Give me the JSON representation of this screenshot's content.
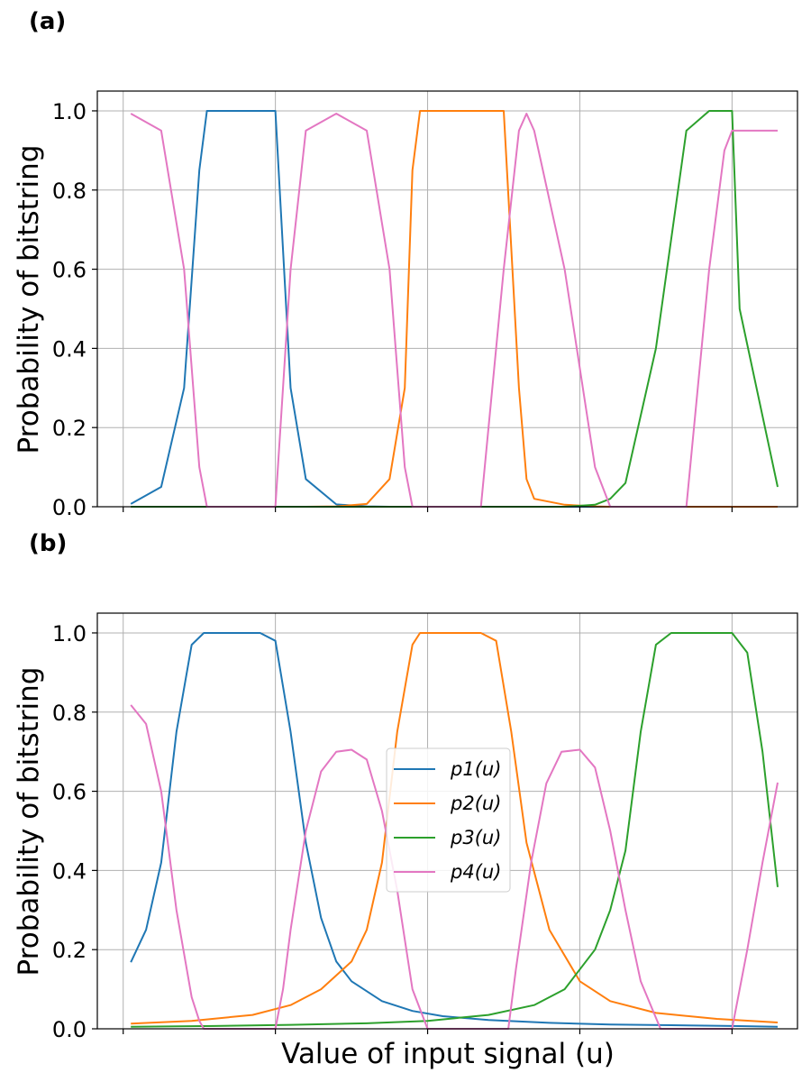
{
  "chart_data": [
    {
      "panel": "(a)",
      "type": "line",
      "title": "",
      "xlabel": "",
      "ylabel": "Probability of bitstring",
      "ylim": [
        0,
        1.05
      ],
      "xlim": [
        -0.5,
        4.1
      ],
      "xticks": [
        -0.33,
        0.67,
        1.67,
        2.67,
        3.67
      ],
      "xtick_labels": [
        "",
        "",
        "",
        "",
        ""
      ],
      "yticks": [
        0.0,
        0.2,
        0.4,
        0.6,
        0.8,
        1.0
      ],
      "ytick_labels": [
        "0.0",
        "0.2",
        "0.4",
        "0.6",
        "0.8",
        "1.0"
      ],
      "grid": true,
      "legend": null,
      "x_sample": [
        -0.28,
        -0.08,
        0.07,
        0.17,
        0.22,
        0.27,
        0.47,
        0.67,
        0.77,
        0.87,
        1.07,
        1.27,
        1.42,
        1.52,
        1.57,
        1.62,
        1.82,
        2.02,
        2.17,
        2.27,
        2.32,
        2.37,
        2.57,
        2.77,
        2.87,
        2.97,
        3.17,
        3.37,
        3.52,
        3.62,
        3.67,
        3.72,
        3.97
      ],
      "series": [
        {
          "name": "p1(u)",
          "color": "#1f77b4",
          "values": [
            0.007,
            0.05,
            0.3,
            0.85,
            1.0,
            1.0,
            1.0,
            1.0,
            0.3,
            0.07,
            0.006,
            0.001,
            0,
            0,
            0,
            0,
            0,
            0,
            0,
            0,
            0,
            0,
            0,
            0,
            0,
            0,
            0,
            0,
            0,
            0,
            0,
            0,
            0
          ]
        },
        {
          "name": "p2(u)",
          "color": "#ff7f0e",
          "values": [
            0,
            0,
            0,
            0,
            0,
            0,
            0,
            0,
            0,
            0,
            0.001,
            0.007,
            0.07,
            0.3,
            0.85,
            1.0,
            1.0,
            1.0,
            1.0,
            0.3,
            0.07,
            0.02,
            0.005,
            0.001,
            0,
            0,
            0,
            0,
            0,
            0,
            0,
            0,
            0
          ]
        },
        {
          "name": "p3(u)",
          "color": "#2ca02c",
          "values": [
            0,
            0,
            0,
            0,
            0,
            0,
            0,
            0,
            0,
            0,
            0,
            0,
            0,
            0,
            0,
            0,
            0,
            0,
            0,
            0,
            0,
            0,
            0,
            0.005,
            0.02,
            0.06,
            0.4,
            0.95,
            1.0,
            1.0,
            1.0,
            0.5,
            0.05
          ]
        },
        {
          "name": "p4(u)",
          "color": "#e377c2",
          "values": [
            0.993,
            0.95,
            0.6,
            0.1,
            0,
            0,
            0,
            0,
            0.6,
            0.95,
            0.993,
            0.95,
            0.6,
            0.1,
            0,
            0,
            0,
            0,
            0.6,
            0.95,
            0.993,
            0.95,
            0.6,
            0.1,
            0,
            0,
            0,
            0,
            0.6,
            0.9,
            0.95,
            0.95,
            0.95
          ]
        }
      ]
    },
    {
      "panel": "(b)",
      "type": "line",
      "title": "",
      "xlabel": "Value of input signal (u)",
      "ylabel": "Probability of bitstring",
      "ylim": [
        0,
        1.05
      ],
      "xlim": [
        -0.5,
        4.1
      ],
      "xticks": [
        -0.33,
        0.67,
        1.67,
        2.67,
        3.67
      ],
      "xtick_labels": [
        "",
        "",
        "",
        "",
        ""
      ],
      "yticks": [
        0.0,
        0.2,
        0.4,
        0.6,
        0.8,
        1.0
      ],
      "ytick_labels": [
        "0.0",
        "0.2",
        "0.4",
        "0.6",
        "0.8",
        "1.0"
      ],
      "grid": true,
      "legend": {
        "placement": "center",
        "entries": [
          "p1(u)",
          "p2(u)",
          "p3(u)",
          "p4(u)"
        ]
      },
      "series": [
        {
          "name": "p1(u)",
          "color": "#1f77b4",
          "x": [
            -0.28,
            -0.18,
            -0.08,
            0.02,
            0.12,
            0.2,
            0.27,
            0.37,
            0.47,
            0.57,
            0.67,
            0.77,
            0.87,
            0.97,
            1.07,
            1.17,
            1.37,
            1.57,
            1.77,
            2.07,
            2.47,
            2.87,
            3.27,
            3.67,
            3.97
          ],
          "values": [
            0.168,
            0.25,
            0.42,
            0.75,
            0.97,
            1.0,
            1.0,
            1.0,
            1.0,
            1.0,
            0.98,
            0.75,
            0.47,
            0.28,
            0.17,
            0.12,
            0.07,
            0.045,
            0.032,
            0.022,
            0.015,
            0.011,
            0.009,
            0.007,
            0.005
          ]
        },
        {
          "name": "p2(u)",
          "color": "#ff7f0e",
          "x": [
            -0.28,
            0.12,
            0.52,
            0.77,
            0.97,
            1.17,
            1.27,
            1.37,
            1.47,
            1.57,
            1.62,
            1.72,
            1.82,
            1.92,
            2.02,
            2.12,
            2.22,
            2.32,
            2.47,
            2.67,
            2.87,
            3.17,
            3.57,
            3.97
          ],
          "values": [
            0.013,
            0.02,
            0.035,
            0.06,
            0.1,
            0.17,
            0.25,
            0.42,
            0.75,
            0.97,
            1.0,
            1.0,
            1.0,
            1.0,
            1.0,
            0.98,
            0.75,
            0.47,
            0.25,
            0.12,
            0.07,
            0.04,
            0.025,
            0.016
          ]
        },
        {
          "name": "p3(u)",
          "color": "#2ca02c",
          "x": [
            -0.28,
            0.27,
            0.77,
            1.27,
            1.67,
            2.07,
            2.37,
            2.57,
            2.77,
            2.87,
            2.97,
            3.07,
            3.17,
            3.27,
            3.37,
            3.47,
            3.57,
            3.67,
            3.77,
            3.87,
            3.97
          ],
          "values": [
            0.005,
            0.007,
            0.01,
            0.014,
            0.02,
            0.035,
            0.06,
            0.1,
            0.2,
            0.3,
            0.45,
            0.75,
            0.97,
            1.0,
            1.0,
            1.0,
            1.0,
            1.0,
            0.95,
            0.7,
            0.358
          ]
        },
        {
          "name": "p4(u)",
          "color": "#e377c2",
          "x": [
            -0.28,
            -0.18,
            -0.08,
            0.02,
            0.12,
            0.17,
            0.2,
            0.67,
            0.72,
            0.77,
            0.87,
            0.97,
            1.07,
            1.17,
            1.27,
            1.37,
            1.47,
            1.57,
            1.67,
            2.2,
            2.25,
            2.35,
            2.45,
            2.55,
            2.67,
            2.77,
            2.87,
            2.97,
            3.07,
            3.2,
            3.67,
            3.77,
            3.87,
            3.97
          ],
          "values": [
            0.818,
            0.77,
            0.6,
            0.3,
            0.08,
            0.02,
            0,
            0,
            0.1,
            0.25,
            0.5,
            0.65,
            0.7,
            0.705,
            0.68,
            0.55,
            0.35,
            0.1,
            0,
            0,
            0.15,
            0.42,
            0.62,
            0.7,
            0.705,
            0.66,
            0.5,
            0.3,
            0.12,
            0,
            0,
            0.2,
            0.42,
            0.622
          ]
        }
      ]
    }
  ]
}
